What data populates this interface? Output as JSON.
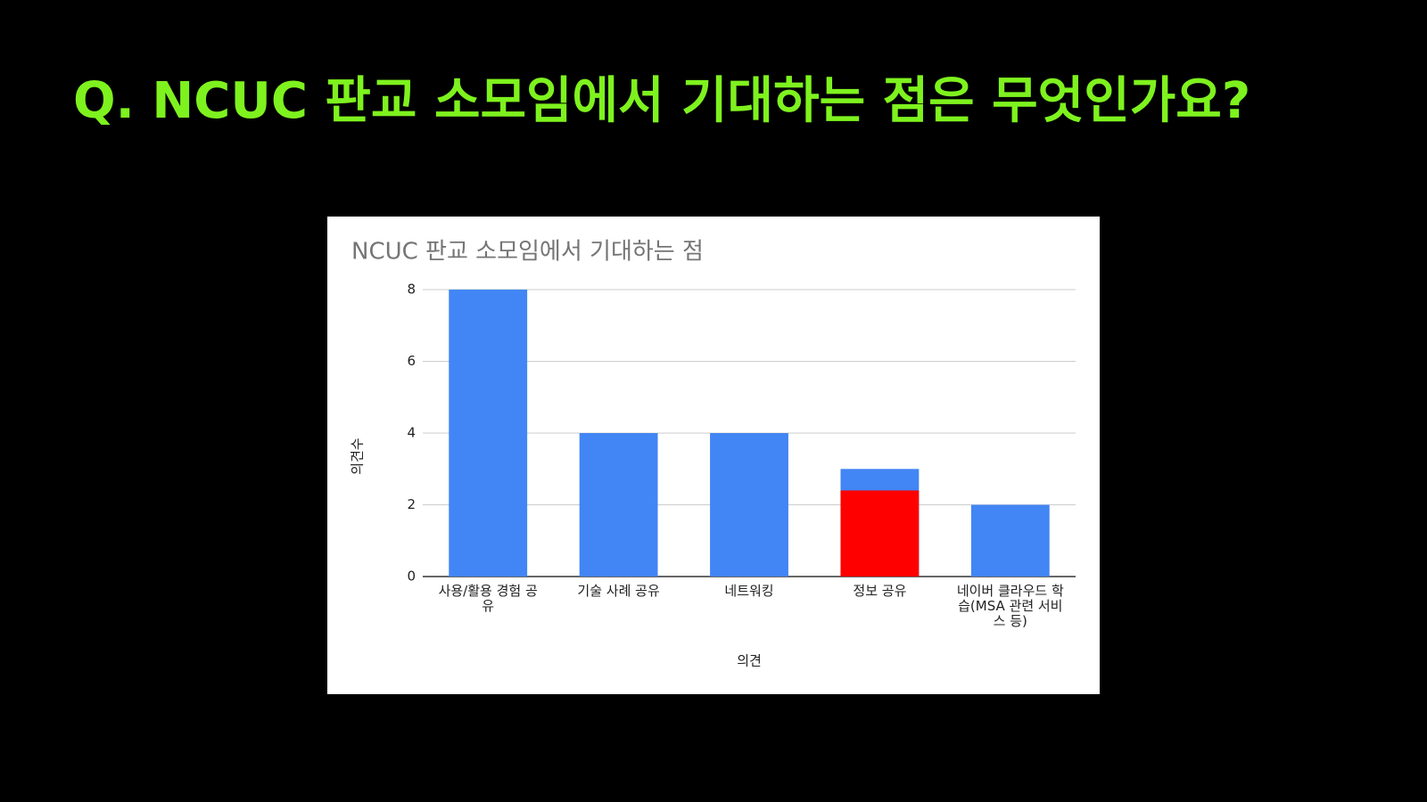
{
  "slide_title": "Q. NCUC 판교 소모임에서 기대하는 점은 무엇인가요?",
  "chart_data": {
    "type": "bar",
    "title": "NCUC 판교 소모임에서 기대하는 점",
    "x_label": "의견",
    "y_label": "의견수",
    "categories": [
      "사용/활용 경험 공유",
      "기술 사례 공유",
      "네트워킹",
      "정보 공유",
      "네이버 클라우드 학습(MSA 관련 서비스 등)"
    ],
    "values": [
      8,
      4,
      4,
      3,
      2
    ],
    "color": "#4285f4",
    "highlight": {
      "index": 3,
      "value": 2.4,
      "color": "#ff0000"
    },
    "ylim": [
      0,
      8
    ],
    "yticks": [
      0,
      2,
      4,
      6,
      8
    ],
    "grid": true
  }
}
